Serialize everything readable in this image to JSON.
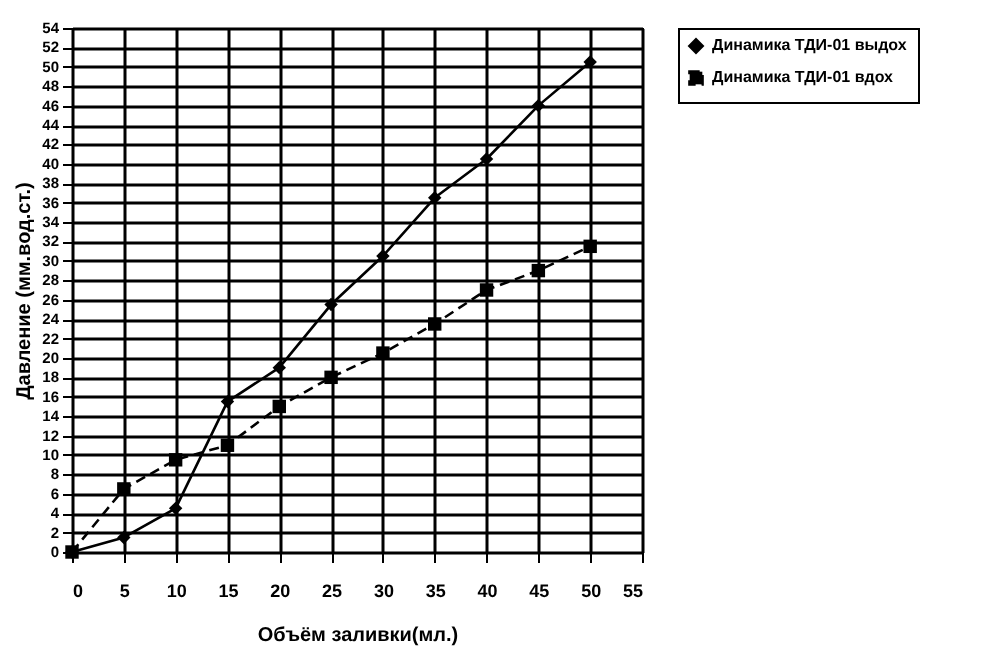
{
  "chart_data": {
    "type": "line",
    "xlabel": "Объём заливки(мл.)",
    "ylabel": "Давление (мм.вод.ст.)",
    "x": [
      0,
      5,
      10,
      15,
      20,
      25,
      30,
      35,
      40,
      45,
      50
    ],
    "series": [
      {
        "name": "Динамика ТДИ-01 выдох",
        "color": "#000000",
        "marker": "diamond",
        "line_style": "solid",
        "values": [
          0,
          1.5,
          4.5,
          15.5,
          19,
          25.5,
          30.5,
          36.5,
          40.5,
          46,
          50.5
        ]
      },
      {
        "name": "Динамика ТДИ-01 вдох",
        "color": "#000000",
        "marker": "square",
        "line_style": "dashed",
        "values": [
          0,
          6.5,
          9.5,
          11,
          15,
          18,
          20.5,
          23.5,
          27,
          29,
          31.5
        ]
      }
    ],
    "xlim": [
      0,
      55
    ],
    "xticks": [
      0,
      5,
      10,
      15,
      20,
      25,
      30,
      35,
      40,
      45,
      50,
      55
    ],
    "ylim": [
      0,
      54
    ],
    "yticks": [
      0,
      2,
      4,
      6,
      8,
      10,
      12,
      14,
      16,
      18,
      20,
      22,
      24,
      26,
      28,
      30,
      32,
      34,
      36,
      38,
      40,
      42,
      44,
      46,
      48,
      50,
      52,
      54
    ],
    "grid": true,
    "legend": "right"
  }
}
